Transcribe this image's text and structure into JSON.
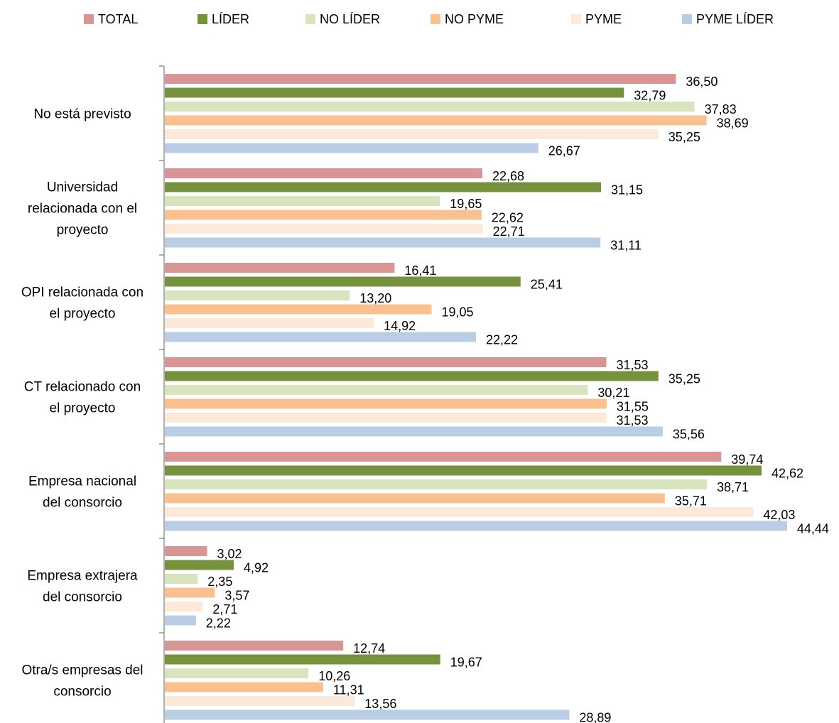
{
  "chart_data": {
    "type": "bar",
    "orientation": "horizontal",
    "title": "",
    "xlabel": "",
    "ylabel": "",
    "xlim": [
      0,
      45
    ],
    "grid": false,
    "legend_position": "top",
    "categories": [
      "No está previsto",
      "Universidad relacionada con el proyecto",
      "OPI relacionada con el proyecto",
      "CT relacionado con el proyecto",
      "Empresa nacional del consorcio",
      "Empresa extrajera del consorcio",
      "Otra/s empresas del consorcio"
    ],
    "category_label_lines": [
      [
        "No está previsto"
      ],
      [
        "Universidad",
        "relacionada con el",
        "proyecto"
      ],
      [
        "OPI relacionada con",
        "el proyecto"
      ],
      [
        "CT relacionado con",
        "el proyecto"
      ],
      [
        "Empresa nacional",
        "del consorcio"
      ],
      [
        "Empresa extrajera",
        "del consorcio"
      ],
      [
        "Otra/s empresas del",
        "consorcio"
      ]
    ],
    "series": [
      {
        "name": "TOTAL",
        "color": "#d99594",
        "values": [
          36.5,
          22.68,
          16.41,
          31.53,
          39.74,
          3.02,
          12.74
        ],
        "labels": [
          "36,50",
          "22,68",
          "16,41",
          "31,53",
          "39,74",
          "3,02",
          "12,74"
        ]
      },
      {
        "name": "LÍDER",
        "color": "#76923c",
        "values": [
          32.79,
          31.15,
          25.41,
          35.25,
          42.62,
          4.92,
          19.67
        ],
        "labels": [
          "32,79",
          "31,15",
          "25,41",
          "35,25",
          "42,62",
          "4,92",
          "19,67"
        ]
      },
      {
        "name": "NO LÍDER",
        "color": "#d7e4bd",
        "values": [
          37.83,
          19.65,
          13.2,
          30.21,
          38.71,
          2.35,
          10.26
        ],
        "labels": [
          "37,83",
          "19,65",
          "13,20",
          "30,21",
          "38,71",
          "2,35",
          "10,26"
        ]
      },
      {
        "name": "NO PYME",
        "color": "#fac090",
        "values": [
          38.69,
          22.62,
          19.05,
          31.55,
          35.71,
          3.57,
          11.31
        ],
        "labels": [
          "38,69",
          "22,62",
          "19,05",
          "31,55",
          "35,71",
          "3,57",
          "11,31"
        ]
      },
      {
        "name": "PYME",
        "color": "#fde9d9",
        "values": [
          35.25,
          22.71,
          14.92,
          31.53,
          42.03,
          2.71,
          13.56
        ],
        "labels": [
          "35,25",
          "22,71",
          "14,92",
          "31,53",
          "42,03",
          "2,71",
          "13,56"
        ]
      },
      {
        "name": "PYME LÍDER",
        "color": "#b9cde5",
        "values": [
          26.67,
          31.11,
          22.22,
          35.56,
          44.44,
          2.22,
          28.89
        ],
        "labels": [
          "26,67",
          "31,11",
          "22,22",
          "35,56",
          "44,44",
          "2,22",
          "28,89"
        ]
      }
    ]
  }
}
